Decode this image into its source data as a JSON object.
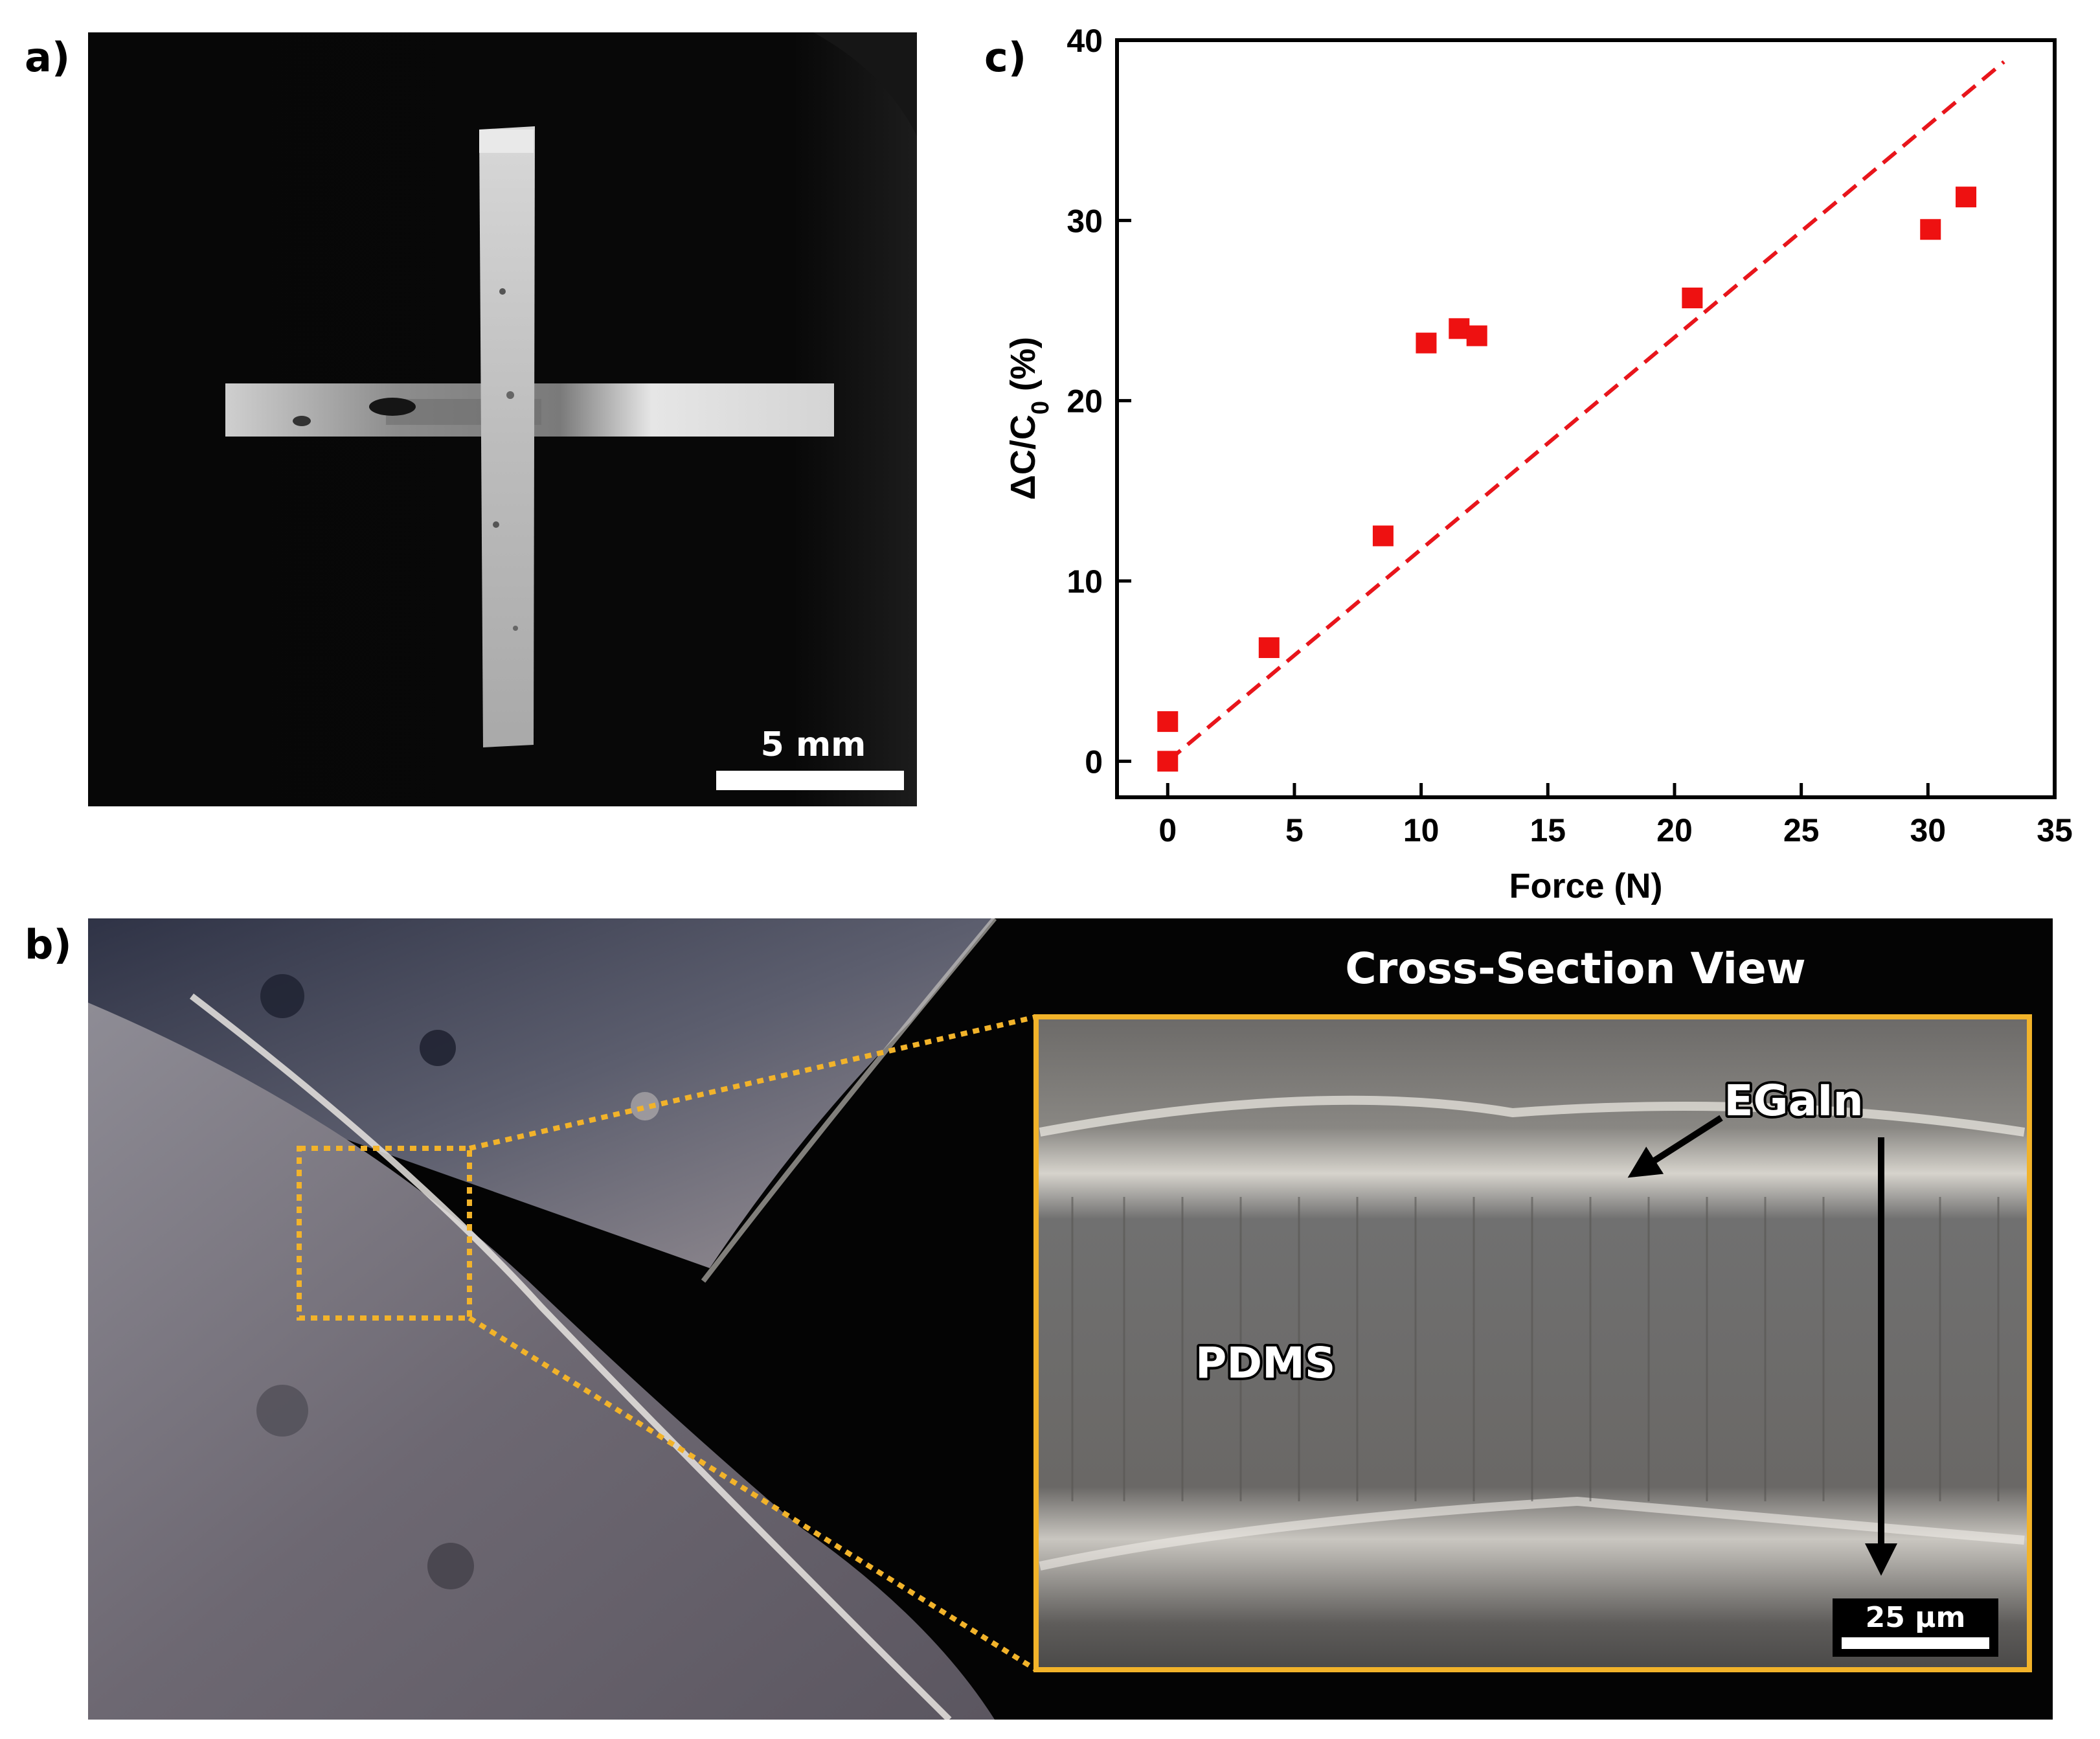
{
  "panels": {
    "a": {
      "letter": "a)",
      "scalebar_label": "5 mm"
    },
    "b": {
      "letter": "b)",
      "title": "Cross-Section View",
      "label_top_layer": "EGaIn",
      "label_middle_layer": "PDMS",
      "scalebar_label": "25 µm"
    },
    "c": {
      "letter": "c)"
    }
  },
  "colors": {
    "marker": "#ee1111",
    "fit_line": "#e8151b",
    "zoom_box": "#f2b32a",
    "photo_background": "#060606"
  },
  "chart_data": {
    "type": "scatter",
    "xlabel": "Force (N)",
    "ylabel_parts": {
      "prefix": "ΔC/C",
      "subscript": "0",
      "suffix": " (%)"
    },
    "xlim": [
      -2,
      35
    ],
    "ylim": [
      -2,
      40
    ],
    "xticks": [
      "0",
      "5",
      "10",
      "15",
      "20",
      "25",
      "30",
      "35"
    ],
    "yticks": [
      "0",
      "10",
      "20",
      "30",
      "40"
    ],
    "grid": false,
    "legend": "none",
    "series": [
      {
        "marker": "square",
        "points": [
          {
            "x": 0,
            "y": 0
          },
          {
            "x": 0,
            "y": 2.2
          },
          {
            "x": 4,
            "y": 6.3
          },
          {
            "x": 8.5,
            "y": 12.5
          },
          {
            "x": 10.2,
            "y": 23.2
          },
          {
            "x": 11.5,
            "y": 24
          },
          {
            "x": 12.2,
            "y": 23.6
          },
          {
            "x": 20.7,
            "y": 25.7
          },
          {
            "x": 30.1,
            "y": 29.5
          },
          {
            "x": 31.5,
            "y": 31.3
          }
        ]
      }
    ],
    "fit_line": {
      "style": "dashed",
      "x": [
        0,
        33
      ],
      "y": [
        0,
        38.8
      ]
    }
  }
}
